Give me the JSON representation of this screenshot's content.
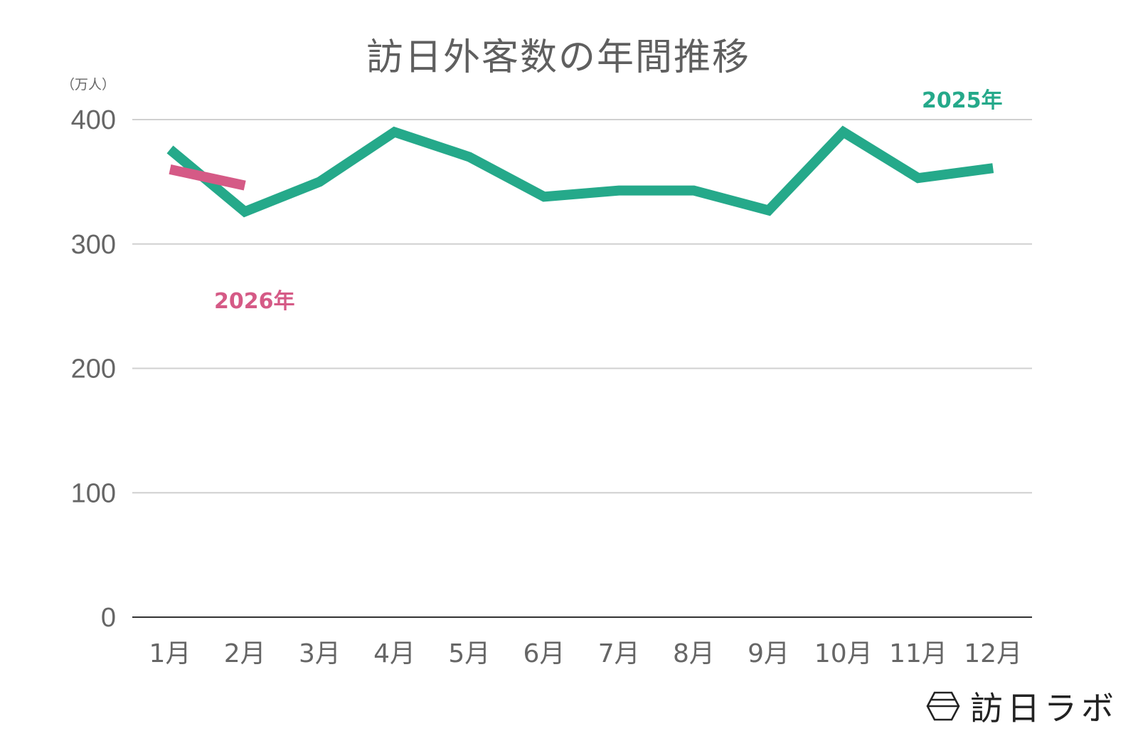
{
  "title": "訪日外客数の年間推移",
  "unit_label": "（万人）",
  "colors": {
    "series_2025": "#25a98a",
    "series_2026": "#d55a86",
    "gridline": "#d0d0d0",
    "axis": "#333333",
    "text": "#666666"
  },
  "legend": {
    "label_2025": "2025年",
    "label_2026": "2026年"
  },
  "logo": {
    "icon": "hexagon-logo-icon",
    "text": "訪日ラボ"
  },
  "chart_data": {
    "type": "line",
    "title": "訪日外客数の年間推移",
    "xlabel": "",
    "ylabel": "（万人）",
    "ylim": [
      0,
      400
    ],
    "yticks": [
      0,
      100,
      200,
      300,
      400
    ],
    "grid": true,
    "legend_position": "inline labels",
    "categories": [
      "1月",
      "2月",
      "3月",
      "4月",
      "5月",
      "6月",
      "7月",
      "8月",
      "9月",
      "10月",
      "11月",
      "12月"
    ],
    "series": [
      {
        "name": "2025年",
        "color": "#25a98a",
        "values": [
          376,
          326,
          350,
          390,
          370,
          338,
          343,
          343,
          327,
          390,
          353,
          361
        ]
      },
      {
        "name": "2026年",
        "color": "#d55a86",
        "values": [
          360,
          347,
          null,
          null,
          null,
          null,
          null,
          null,
          null,
          null,
          null,
          null
        ]
      }
    ]
  }
}
